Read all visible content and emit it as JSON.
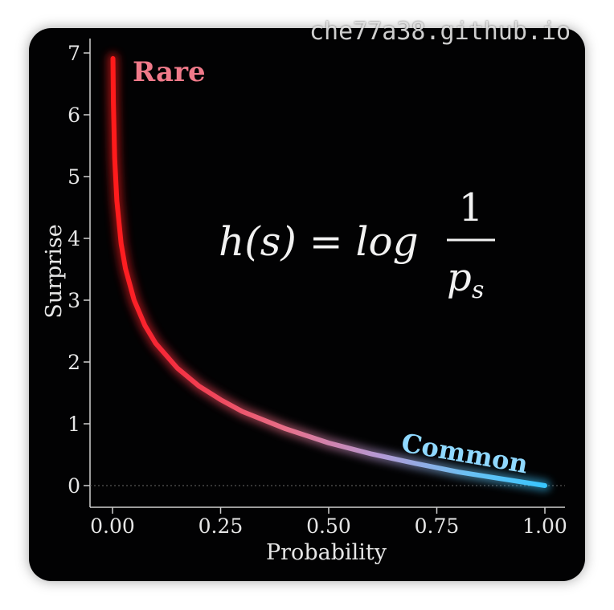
{
  "watermark": "che77a38.github.io",
  "colors": {
    "rare": "#ff2a2a",
    "common": "#38c6ff",
    "background": "#020203"
  },
  "formula": {
    "lhs": "h(s) = log",
    "numerator": "1",
    "denominator": "p",
    "subscript": "s"
  },
  "chart_data": {
    "type": "line",
    "title": "",
    "xlabel": "Probability",
    "ylabel": "Surprise",
    "xlim": [
      0,
      1
    ],
    "ylim": [
      0,
      7
    ],
    "xticks": [
      "0.00",
      "0.25",
      "0.50",
      "0.75",
      "1.00"
    ],
    "yticks": [
      "0",
      "1",
      "2",
      "3",
      "4",
      "5",
      "6",
      "7"
    ],
    "grid": false,
    "series": [
      {
        "function": "-ln(p)",
        "x": [
          0.001,
          0.002,
          0.005,
          0.01,
          0.02,
          0.03,
          0.05,
          0.075,
          0.1,
          0.15,
          0.2,
          0.25,
          0.3,
          0.4,
          0.5,
          0.6,
          0.7,
          0.8,
          0.9,
          1.0
        ],
        "y": [
          6.91,
          6.21,
          5.3,
          4.61,
          3.91,
          3.51,
          3.0,
          2.59,
          2.3,
          1.9,
          1.61,
          1.39,
          1.2,
          0.92,
          0.69,
          0.51,
          0.36,
          0.22,
          0.11,
          0.0
        ]
      }
    ],
    "annotations": [
      {
        "text": "Rare",
        "x": 0.05,
        "y": 6.8
      },
      {
        "text": "Common",
        "x": 0.88,
        "y": 0.35
      }
    ]
  }
}
